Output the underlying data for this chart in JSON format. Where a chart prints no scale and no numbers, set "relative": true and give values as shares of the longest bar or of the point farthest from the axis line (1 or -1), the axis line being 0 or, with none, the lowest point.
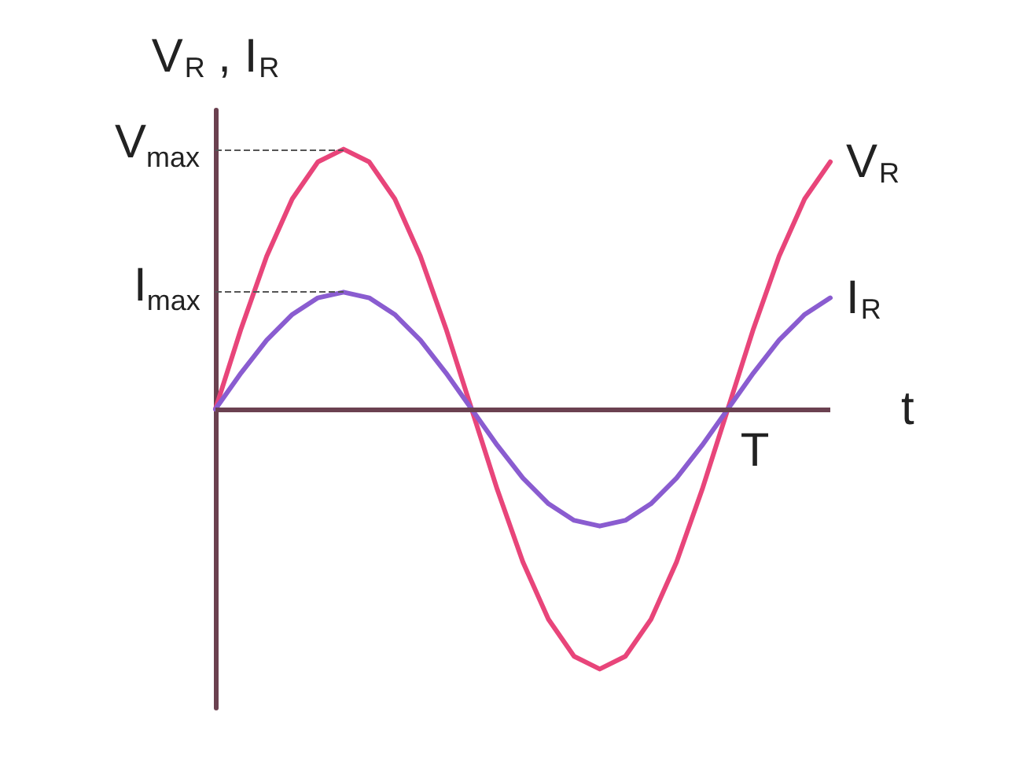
{
  "chart_data": {
    "type": "line",
    "relative": true,
    "xlabel": "t",
    "ylabel": "V$_{R}$ , I$_{R}$",
    "categories": [
      null,
      null,
      null,
      null,
      null,
      null,
      null,
      null,
      null,
      null,
      null,
      null,
      null,
      null,
      null,
      null,
      null,
      null,
      null,
      null,
      null,
      null,
      null,
      null,
      null
    ],
    "series": [
      {
        "name": "V$_{R}$",
        "color": "#e8457a",
        "values": [
          0,
          0.309,
          0.588,
          0.809,
          0.951,
          1,
          0.951,
          0.809,
          0.588,
          0.309,
          0,
          -0.309,
          -0.588,
          -0.809,
          -0.951,
          -1,
          -0.951,
          -0.809,
          -0.588,
          -0.309,
          0,
          0.309,
          0.588,
          0.809,
          0.951
        ]
      },
      {
        "name": "I$_{R}$",
        "color": "#8a5cd0",
        "values": [
          0,
          0.139,
          0.265,
          0.364,
          0.428,
          0.45,
          0.428,
          0.364,
          0.265,
          0.139,
          0,
          -0.139,
          -0.265,
          -0.364,
          -0.428,
          -0.45,
          -0.428,
          -0.364,
          -0.265,
          -0.139,
          0,
          0.139,
          0.265,
          0.364,
          0.428
        ]
      }
    ],
    "annotations": [
      "V$_{max}$",
      "I$_{max}$",
      "T"
    ],
    "ref_lines": [
      {
        "axis": "y",
        "value": 0,
        "color": "#6b4150"
      }
    ],
    "marker": "none",
    "line_style": "solid",
    "grid": false
  }
}
